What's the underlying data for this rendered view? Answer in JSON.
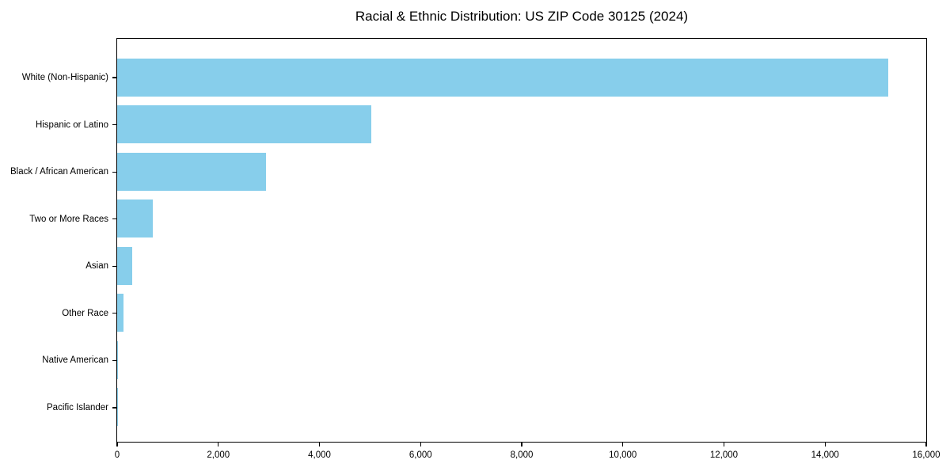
{
  "colors": {
    "bar": "#87CEEB",
    "axis": "#000000",
    "background": "#FFFFFF",
    "text": "#000000"
  },
  "chart_data": {
    "type": "bar",
    "orientation": "horizontal",
    "title": "Racial & Ethnic Distribution: US ZIP Code 30125 (2024)",
    "categories": [
      "White (Non-Hispanic)",
      "Hispanic or Latino",
      "Black / African American",
      "Two or More Races",
      "Asian",
      "Other Race",
      "Native American",
      "Pacific Islander"
    ],
    "values": [
      15250,
      5030,
      2950,
      705,
      310,
      135,
      20,
      8
    ],
    "xlabel": "",
    "ylabel": "",
    "xlim": [
      0,
      16000
    ],
    "xticks": [
      0,
      2000,
      4000,
      6000,
      8000,
      10000,
      12000,
      14000,
      16000
    ],
    "xtick_labels": [
      "0",
      "2,000",
      "4,000",
      "6,000",
      "8,000",
      "10,000",
      "12,000",
      "14,000",
      "16,000"
    ],
    "grid": false,
    "legend": null,
    "bar_color": "#87CEEB"
  }
}
